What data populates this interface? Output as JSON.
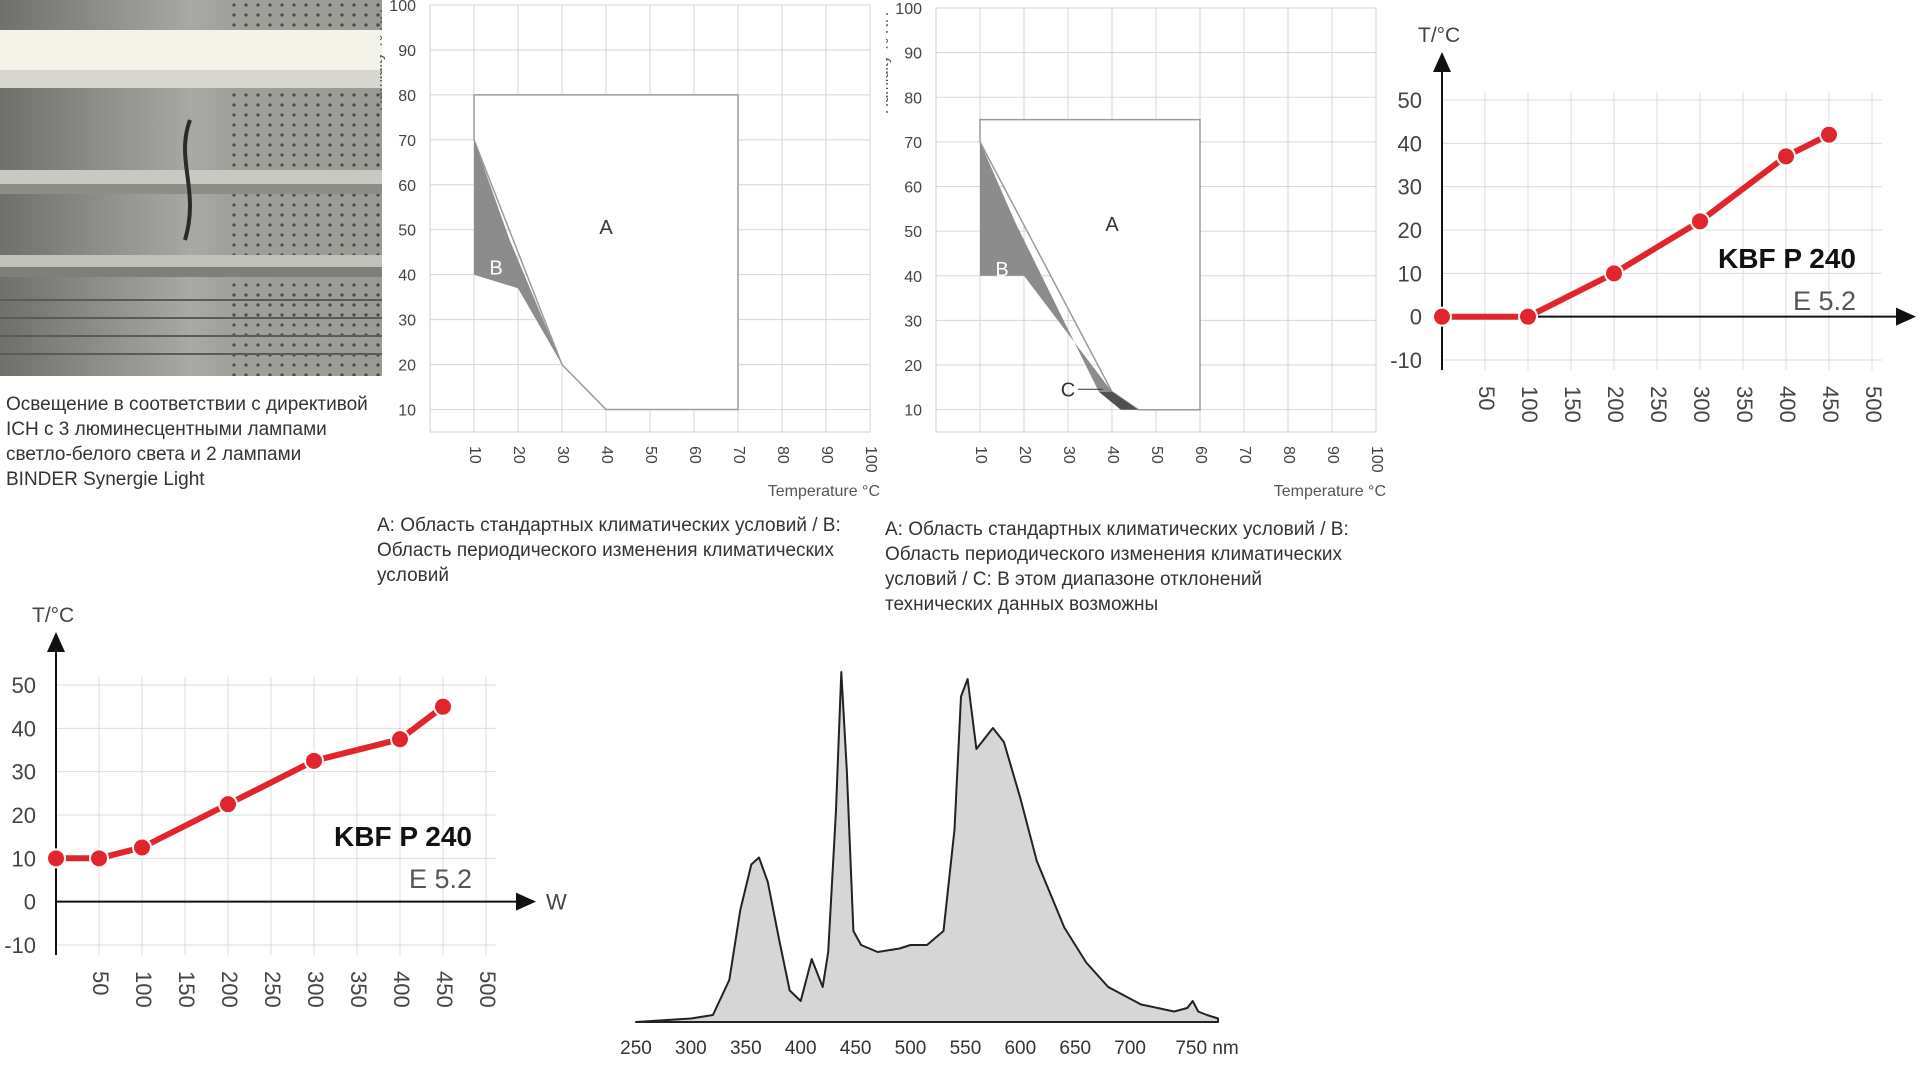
{
  "photo": {
    "caption_lines": [
      "Освещение в соответствии с директивой",
      "ICH с 3 люминесцентными лампами",
      "светло-белого света и 2 лампами",
      "BINDER Synergie Light"
    ]
  },
  "captions": {
    "climate1_lines": [
      "A: Область стандартных климатических условий / B:",
      "Область периодического изменения климатических",
      "условий"
    ],
    "climate2_lines": [
      "A: Область стандартных климатических условий / B:",
      "Область периодического изменения климатических",
      "условий / C: В этом диапазоне отклонений",
      "технических данных возможны"
    ]
  },
  "chart_data": [
    {
      "id": "climate1",
      "type": "area",
      "xlabel": "Temperature °C",
      "ylabel": "Humidity % RH",
      "x_ticks": [
        10,
        20,
        30,
        40,
        50,
        60,
        70,
        80,
        90,
        100
      ],
      "y_ticks": [
        10,
        20,
        30,
        40,
        50,
        60,
        70,
        80,
        90,
        100
      ],
      "xlim": [
        0,
        100
      ],
      "ylim": [
        5,
        100
      ],
      "grid": true,
      "regions": [
        {
          "name": "A",
          "polygon": [
            [
              10,
              80
            ],
            [
              70,
              80
            ],
            [
              70,
              10
            ],
            [
              40,
              10
            ],
            [
              30,
              20
            ],
            [
              10,
              70
            ]
          ],
          "fill": "#ffffff"
        },
        {
          "name": "B",
          "polygon": [
            [
              10,
              70
            ],
            [
              10,
              40
            ],
            [
              20,
              37
            ],
            [
              30,
              20
            ],
            [
              30,
              20
            ],
            [
              18,
              48
            ]
          ],
          "fill": "#8c8c8c"
        }
      ],
      "labels": [
        {
          "text": "A",
          "x": 40,
          "y": 49
        },
        {
          "text": "B",
          "x": 15,
          "y": 40
        }
      ]
    },
    {
      "id": "climate2",
      "type": "area",
      "xlabel": "Temperature °C",
      "ylabel": "Humidity % RH",
      "x_ticks": [
        10,
        20,
        30,
        40,
        50,
        60,
        70,
        80,
        90,
        100
      ],
      "y_ticks": [
        10,
        20,
        30,
        40,
        50,
        60,
        70,
        80,
        90,
        100
      ],
      "xlim": [
        0,
        100
      ],
      "ylim": [
        5,
        100
      ],
      "grid": true,
      "regions": [
        {
          "name": "A",
          "polygon": [
            [
              10,
              75
            ],
            [
              60,
              75
            ],
            [
              60,
              10
            ],
            [
              46,
              10
            ],
            [
              40,
              14
            ],
            [
              10,
              70
            ]
          ],
          "fill": "#ffffff"
        },
        {
          "name": "B",
          "polygon": [
            [
              10,
              70
            ],
            [
              10,
              40
            ],
            [
              20,
              40
            ],
            [
              40,
              14
            ],
            [
              37,
              14
            ],
            [
              18,
              52
            ]
          ],
          "fill": "#8c8c8c"
        },
        {
          "name": "C",
          "polygon": [
            [
              37,
              14
            ],
            [
              40,
              14
            ],
            [
              46,
              10
            ],
            [
              42,
              10
            ]
          ],
          "fill": "#505050"
        }
      ],
      "labels": [
        {
          "text": "A",
          "x": 40,
          "y": 50
        },
        {
          "text": "B",
          "x": 15,
          "y": 40
        },
        {
          "text": "C",
          "x": 30,
          "y": 13
        }
      ]
    },
    {
      "id": "temp_chart_1",
      "type": "line",
      "title": "KBF P 240",
      "subtitle": "E 5.2",
      "ylabel": "T/°C",
      "xlabel": "",
      "x_ticks": [
        50,
        100,
        150,
        200,
        250,
        300,
        350,
        400,
        450,
        500
      ],
      "y_ticks": [
        50,
        40,
        30,
        20,
        10,
        0,
        -10
      ],
      "xlim": [
        0,
        500
      ],
      "ylim": [
        -10,
        50
      ],
      "x": [
        0,
        100,
        200,
        300,
        400,
        450
      ],
      "y": [
        0,
        0,
        10,
        22,
        37,
        42
      ],
      "color": "#e0262c"
    },
    {
      "id": "temp_chart_2",
      "type": "line",
      "title": "KBF P 240",
      "subtitle": "E 5.2",
      "ylabel": "T/°C",
      "xlabel": "W",
      "x_ticks": [
        50,
        100,
        150,
        200,
        250,
        300,
        350,
        400,
        450,
        500
      ],
      "y_ticks": [
        50,
        40,
        30,
        20,
        10,
        0,
        -10
      ],
      "xlim": [
        0,
        500
      ],
      "ylim": [
        -10,
        50
      ],
      "x": [
        0,
        50,
        100,
        200,
        300,
        400,
        450
      ],
      "y": [
        10,
        10,
        12.5,
        22.5,
        32.5,
        37.5,
        45
      ],
      "color": "#e0262c"
    },
    {
      "id": "spectrum",
      "type": "area",
      "xlabel": "",
      "x_ticks": [
        250,
        300,
        350,
        400,
        450,
        500,
        550,
        600,
        650,
        700,
        750
      ],
      "x_unit": "nm",
      "xlim": [
        250,
        780
      ],
      "ylim": [
        0,
        1
      ],
      "x": [
        250,
        300,
        320,
        335,
        345,
        355,
        362,
        370,
        380,
        390,
        400,
        405,
        410,
        415,
        420,
        425,
        432,
        437,
        442,
        448,
        455,
        470,
        490,
        500,
        515,
        530,
        540,
        546,
        552,
        560,
        575,
        585,
        600,
        615,
        640,
        660,
        680,
        710,
        740,
        752,
        757,
        762,
        770,
        780
      ],
      "y": [
        0,
        0.01,
        0.02,
        0.12,
        0.32,
        0.45,
        0.47,
        0.4,
        0.24,
        0.09,
        0.06,
        0.12,
        0.18,
        0.14,
        0.1,
        0.2,
        0.6,
        1.0,
        0.72,
        0.26,
        0.22,
        0.2,
        0.21,
        0.22,
        0.22,
        0.26,
        0.55,
        0.93,
        0.98,
        0.78,
        0.84,
        0.8,
        0.64,
        0.46,
        0.27,
        0.17,
        0.1,
        0.05,
        0.03,
        0.04,
        0.06,
        0.03,
        0.02,
        0.01
      ],
      "fill": "#d6d6d6"
    }
  ]
}
